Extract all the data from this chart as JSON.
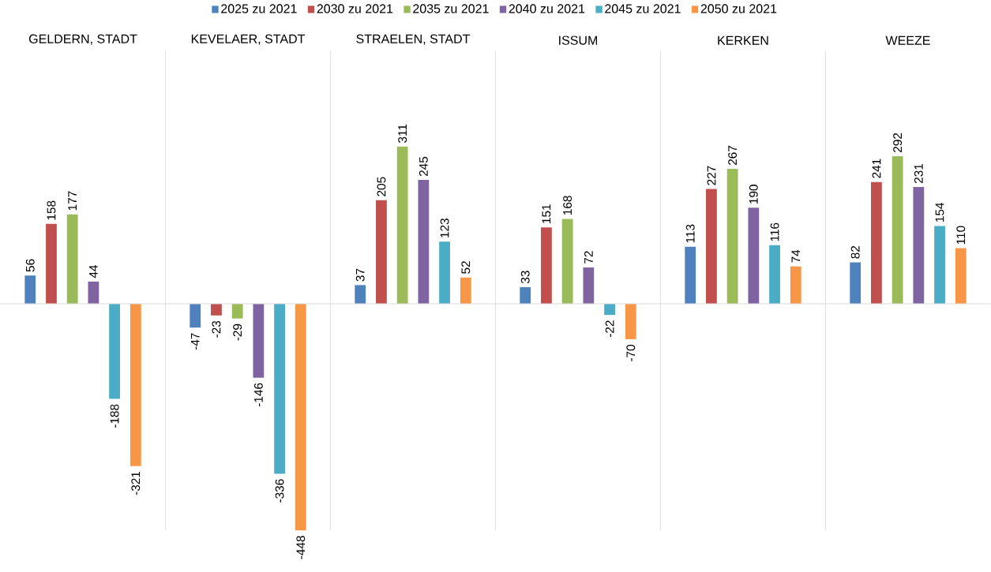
{
  "chart_data": {
    "type": "bar",
    "categories": [
      "GELDERN, STADT",
      "KEVELAER, STADT",
      "STRAELEN, STADT",
      "ISSUM",
      "KERKEN",
      "WEEZE"
    ],
    "series": [
      {
        "name": "2025 zu 2021",
        "color": "#4f81bd",
        "values": [
          56,
          -47,
          37,
          33,
          113,
          82
        ]
      },
      {
        "name": "2030 zu 2021",
        "color": "#c0504d",
        "values": [
          158,
          -23,
          205,
          151,
          227,
          241
        ]
      },
      {
        "name": "2035 zu 2021",
        "color": "#9bbb59",
        "values": [
          177,
          -29,
          311,
          168,
          267,
          292
        ]
      },
      {
        "name": "2040 zu 2021",
        "color": "#8064a2",
        "values": [
          44,
          -146,
          245,
          72,
          190,
          231
        ]
      },
      {
        "name": "2045 zu 2021",
        "color": "#4bacc6",
        "values": [
          -188,
          -336,
          123,
          -22,
          116,
          154
        ]
      },
      {
        "name": "2050 zu 2021",
        "color": "#f79646",
        "values": [
          -321,
          -448,
          52,
          -70,
          74,
          110
        ]
      }
    ],
    "data_labels": true,
    "grid": "x",
    "legend": "top",
    "tick_labels": "x"
  }
}
